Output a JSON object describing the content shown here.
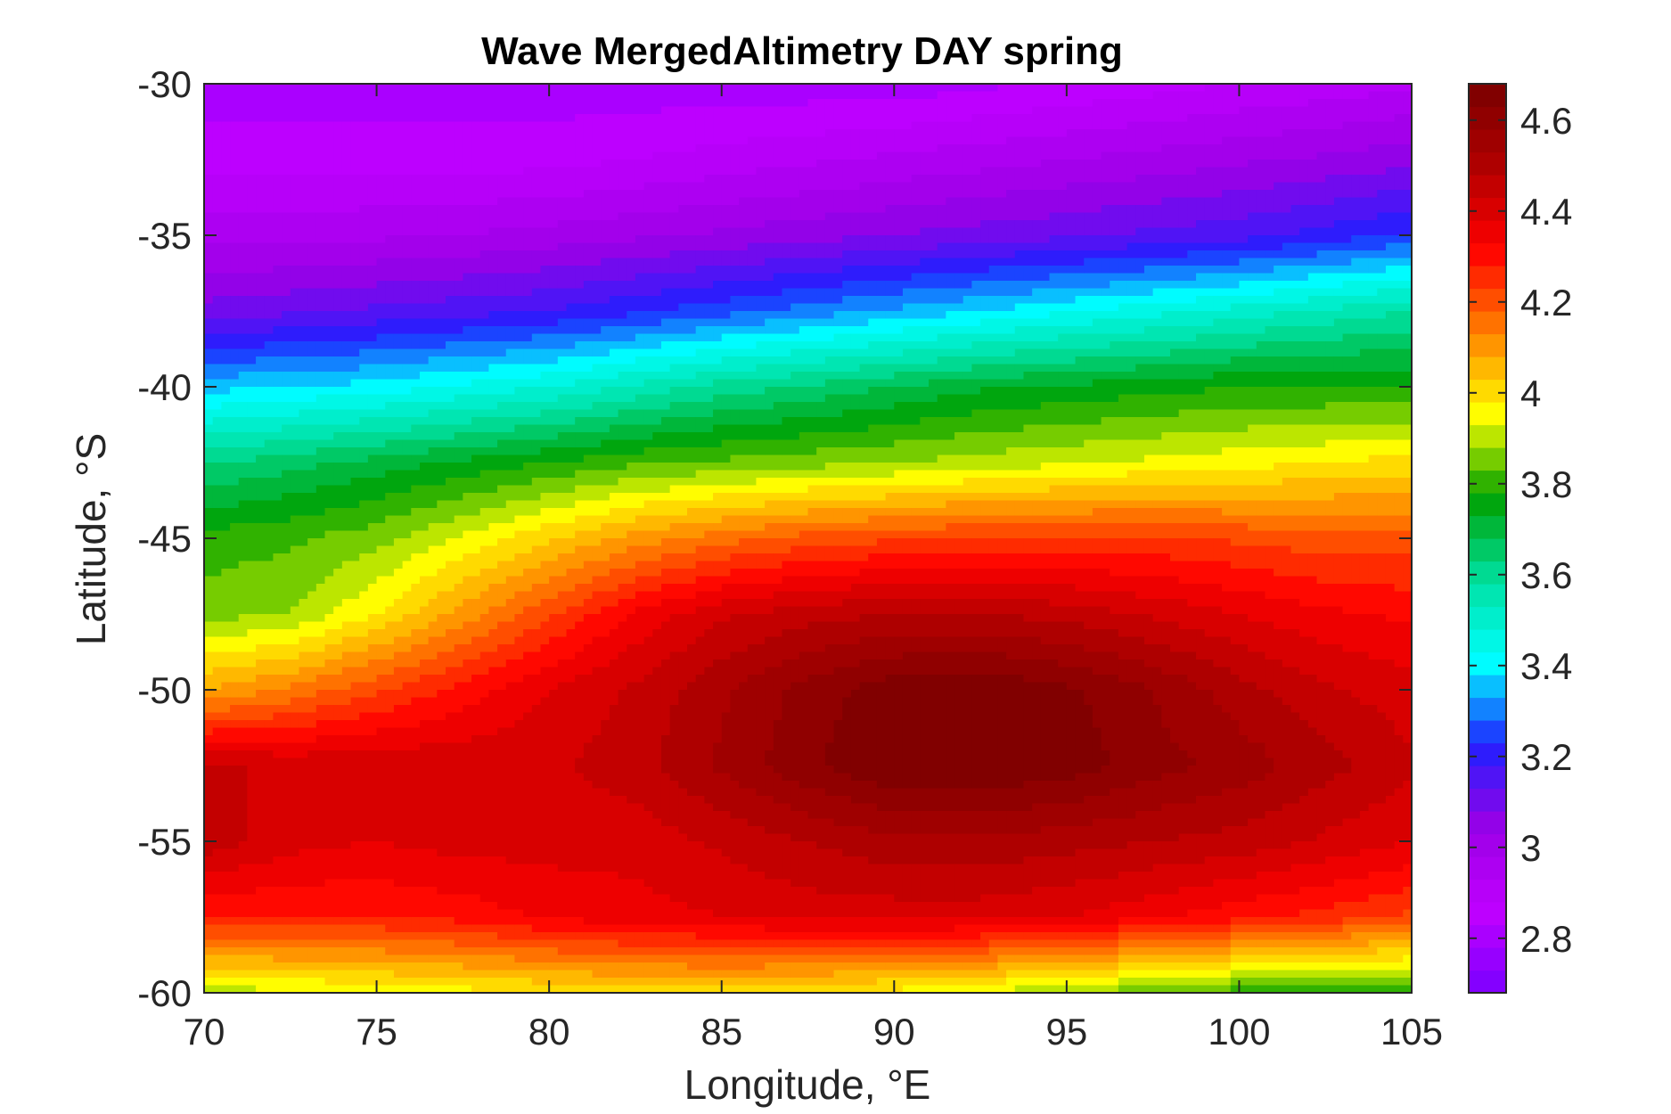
{
  "chart_data": {
    "type": "heatmap",
    "subtype": "filled-contour map",
    "title": "Wave MergedAltimetry DAY spring",
    "xlabel": "Longitude, °E",
    "ylabel": "Latitude, °S",
    "xlim": [
      70,
      105
    ],
    "ylim": [
      -60,
      -30
    ],
    "xticks": [
      70,
      75,
      80,
      85,
      90,
      95,
      100,
      105
    ],
    "yticks": [
      -30,
      -35,
      -40,
      -45,
      -50,
      -55,
      -60
    ],
    "colorbar": {
      "range": [
        2.68,
        4.68
      ],
      "ticks": [
        2.8,
        3,
        3.2,
        3.4,
        3.6,
        3.8,
        4,
        4.2,
        4.4,
        4.6
      ],
      "colormap": [
        "#7a00ff",
        "#c000ff",
        "#9b00e6",
        "#2020ff",
        "#00ffff",
        "#00e0a0",
        "#00a000",
        "#ffff00",
        "#ff8000",
        "#ff0000",
        "#b00000",
        "#7a0000"
      ]
    },
    "x": [
      70,
      72.5,
      75,
      77.5,
      80,
      82.5,
      85,
      87.5,
      90,
      92.5,
      95,
      97.5,
      100,
      102.5,
      105
    ],
    "y": [
      -30,
      -32.5,
      -35,
      -37.5,
      -40,
      -42.5,
      -45,
      -47.5,
      -50,
      -52.5,
      -55,
      -57.5,
      -60
    ],
    "z": [
      [
        2.8,
        2.8,
        2.8,
        2.8,
        2.8,
        2.8,
        2.8,
        2.8,
        2.8,
        2.82,
        2.84,
        2.86,
        2.88,
        2.9,
        2.92
      ],
      [
        2.86,
        2.86,
        2.86,
        2.86,
        2.86,
        2.88,
        2.9,
        2.92,
        2.94,
        2.96,
        2.98,
        3.0,
        3.02,
        3.04,
        3.06
      ],
      [
        2.96,
        2.96,
        2.97,
        2.98,
        3.0,
        3.02,
        3.04,
        3.06,
        3.08,
        3.1,
        3.12,
        3.14,
        3.16,
        3.2,
        3.24
      ],
      [
        3.1,
        3.12,
        3.14,
        3.16,
        3.18,
        3.22,
        3.26,
        3.3,
        3.34,
        3.38,
        3.42,
        3.46,
        3.5,
        3.54,
        3.58
      ],
      [
        3.36,
        3.38,
        3.4,
        3.44,
        3.48,
        3.54,
        3.6,
        3.64,
        3.68,
        3.72,
        3.74,
        3.76,
        3.78,
        3.78,
        3.78
      ],
      [
        3.62,
        3.66,
        3.7,
        3.74,
        3.78,
        3.82,
        3.84,
        3.86,
        3.88,
        3.9,
        3.92,
        3.94,
        3.96,
        3.98,
        4.0
      ],
      [
        3.8,
        3.82,
        3.86,
        3.94,
        4.02,
        4.1,
        4.16,
        4.2,
        4.22,
        4.24,
        4.24,
        4.24,
        4.22,
        4.2,
        4.2
      ],
      [
        3.86,
        3.88,
        3.98,
        4.1,
        4.22,
        4.34,
        4.42,
        4.46,
        4.48,
        4.48,
        4.46,
        4.42,
        4.38,
        4.34,
        4.32
      ],
      [
        4.08,
        4.14,
        4.22,
        4.3,
        4.38,
        4.44,
        4.52,
        4.6,
        4.66,
        4.68,
        4.64,
        4.58,
        4.5,
        4.44,
        4.4
      ],
      [
        4.44,
        4.42,
        4.42,
        4.42,
        4.42,
        4.46,
        4.54,
        4.62,
        4.68,
        4.68,
        4.66,
        4.6,
        4.56,
        4.5,
        4.44
      ],
      [
        4.46,
        4.4,
        4.38,
        4.4,
        4.4,
        4.4,
        4.44,
        4.48,
        4.52,
        4.52,
        4.5,
        4.48,
        4.46,
        4.42,
        4.38
      ],
      [
        4.28,
        4.28,
        4.28,
        4.3,
        4.34,
        4.36,
        4.38,
        4.4,
        4.4,
        4.4,
        4.38,
        4.34,
        4.3,
        4.26,
        4.22
      ],
      [
        3.9,
        3.92,
        3.94,
        3.96,
        3.98,
        4.0,
        4.0,
        3.98,
        3.96,
        3.92,
        3.88,
        3.84,
        3.8,
        3.78,
        3.78
      ]
    ]
  }
}
